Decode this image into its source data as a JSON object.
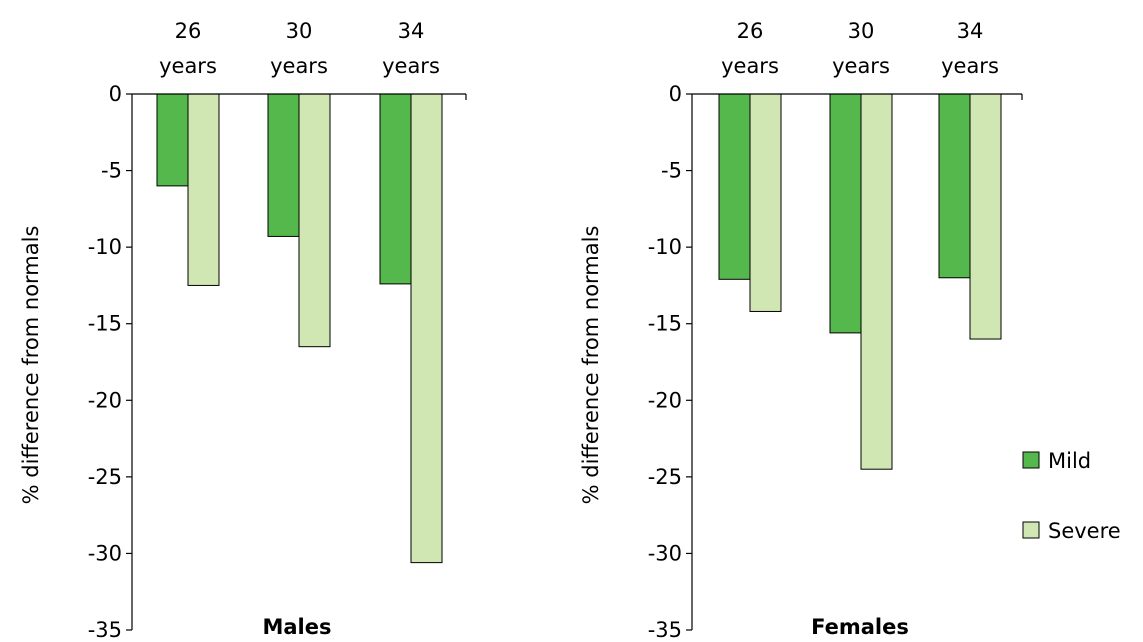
{
  "colors": {
    "mild": "#55b84c",
    "severe": "#d1e7b3"
  },
  "legend": {
    "mild": "Mild",
    "severe": "Severe"
  },
  "chart_data": [
    {
      "type": "bar",
      "xlabel": "Males",
      "ylabel": "% difference from normals",
      "categories": [
        [
          "26",
          "years"
        ],
        [
          "30",
          "years"
        ],
        [
          "34",
          "years"
        ]
      ],
      "series": [
        {
          "name": "Mild",
          "values": [
            -6.0,
            -9.3,
            -12.4
          ]
        },
        {
          "name": "Severe",
          "values": [
            -12.5,
            -16.5,
            -30.6
          ]
        }
      ],
      "ylim": [
        -35,
        0
      ],
      "yticks": [
        "0",
        "-5",
        "-10",
        "-15",
        "-20",
        "-25",
        "-30",
        "-35"
      ]
    },
    {
      "type": "bar",
      "xlabel": "Females",
      "ylabel": "% difference from normals",
      "categories": [
        [
          "26",
          "years"
        ],
        [
          "30",
          "years"
        ],
        [
          "34",
          "years"
        ]
      ],
      "series": [
        {
          "name": "Mild",
          "values": [
            -12.1,
            -15.6,
            -12.0
          ]
        },
        {
          "name": "Severe",
          "values": [
            -14.2,
            -24.5,
            -16.0
          ]
        }
      ],
      "ylim": [
        -35,
        0
      ],
      "yticks": [
        "0",
        "-5",
        "-10",
        "-15",
        "-20",
        "-25",
        "-30",
        "-35"
      ]
    }
  ]
}
